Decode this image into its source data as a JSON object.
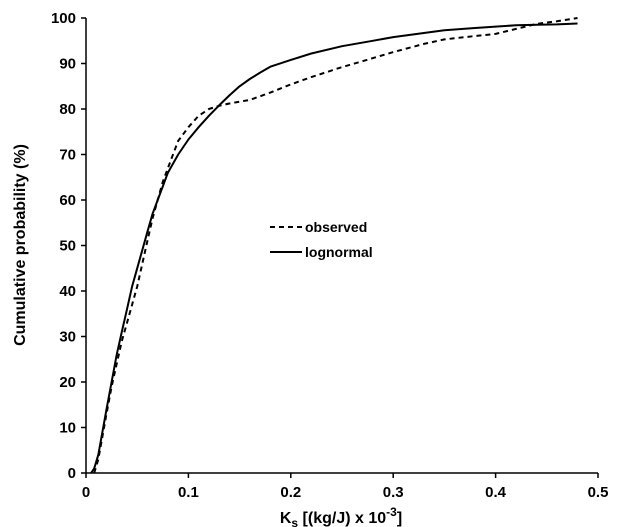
{
  "chart_data": {
    "type": "line",
    "xlabel": {
      "main": "K",
      "sub": "s",
      "mid": " [(kg/J) x 10",
      "sup": "-3",
      "end": "]"
    },
    "ylabel": "Cumulative probability (%)",
    "xlim": [
      0,
      0.5
    ],
    "ylim": [
      0,
      100
    ],
    "x_ticks": [
      "0",
      "0.1",
      "0.2",
      "0.3",
      "0.4",
      "0.5"
    ],
    "y_ticks": [
      "0",
      "10",
      "20",
      "30",
      "40",
      "50",
      "60",
      "70",
      "80",
      "90",
      "100"
    ],
    "grid": false,
    "legend_position": "center",
    "series": [
      {
        "name": "observed",
        "style": "dashed",
        "color": "#000000",
        "points": [
          [
            0.008,
            0
          ],
          [
            0.012,
            3
          ],
          [
            0.016,
            8
          ],
          [
            0.02,
            13
          ],
          [
            0.025,
            19
          ],
          [
            0.03,
            24
          ],
          [
            0.035,
            29
          ],
          [
            0.04,
            33
          ],
          [
            0.045,
            37
          ],
          [
            0.05,
            41
          ],
          [
            0.055,
            46
          ],
          [
            0.06,
            51
          ],
          [
            0.065,
            56
          ],
          [
            0.07,
            60
          ],
          [
            0.075,
            64
          ],
          [
            0.08,
            67
          ],
          [
            0.085,
            70
          ],
          [
            0.09,
            73
          ],
          [
            0.1,
            76
          ],
          [
            0.11,
            78.5
          ],
          [
            0.12,
            80
          ],
          [
            0.13,
            80.7
          ],
          [
            0.14,
            81.2
          ],
          [
            0.15,
            81.6
          ],
          [
            0.16,
            82
          ],
          [
            0.18,
            83.6
          ],
          [
            0.2,
            85.4
          ],
          [
            0.22,
            87
          ],
          [
            0.25,
            89.2
          ],
          [
            0.27,
            90.5
          ],
          [
            0.3,
            92.5
          ],
          [
            0.33,
            94.3
          ],
          [
            0.35,
            95.3
          ],
          [
            0.37,
            95.8
          ],
          [
            0.4,
            96.5
          ],
          [
            0.42,
            97.6
          ],
          [
            0.44,
            98.7
          ],
          [
            0.46,
            99.3
          ],
          [
            0.48,
            100
          ]
        ]
      },
      {
        "name": "lognormal",
        "style": "solid",
        "color": "#000000",
        "points": [
          [
            0.005,
            0
          ],
          [
            0.008,
            1
          ],
          [
            0.012,
            4
          ],
          [
            0.016,
            9
          ],
          [
            0.02,
            14
          ],
          [
            0.025,
            20
          ],
          [
            0.03,
            26
          ],
          [
            0.035,
            31
          ],
          [
            0.04,
            36
          ],
          [
            0.045,
            41
          ],
          [
            0.05,
            45
          ],
          [
            0.055,
            49
          ],
          [
            0.06,
            53
          ],
          [
            0.065,
            57
          ],
          [
            0.07,
            60
          ],
          [
            0.075,
            63
          ],
          [
            0.08,
            66
          ],
          [
            0.09,
            70
          ],
          [
            0.1,
            73.3
          ],
          [
            0.11,
            76
          ],
          [
            0.12,
            78.5
          ],
          [
            0.13,
            80.8
          ],
          [
            0.14,
            83
          ],
          [
            0.15,
            85
          ],
          [
            0.16,
            86.6
          ],
          [
            0.17,
            88
          ],
          [
            0.18,
            89.3
          ],
          [
            0.2,
            90.8
          ],
          [
            0.22,
            92.2
          ],
          [
            0.25,
            93.8
          ],
          [
            0.28,
            95
          ],
          [
            0.3,
            95.8
          ],
          [
            0.33,
            96.7
          ],
          [
            0.35,
            97.3
          ],
          [
            0.38,
            97.8
          ],
          [
            0.4,
            98.1
          ],
          [
            0.42,
            98.4
          ],
          [
            0.44,
            98.5
          ],
          [
            0.46,
            98.6
          ],
          [
            0.48,
            98.8
          ]
        ]
      }
    ]
  }
}
